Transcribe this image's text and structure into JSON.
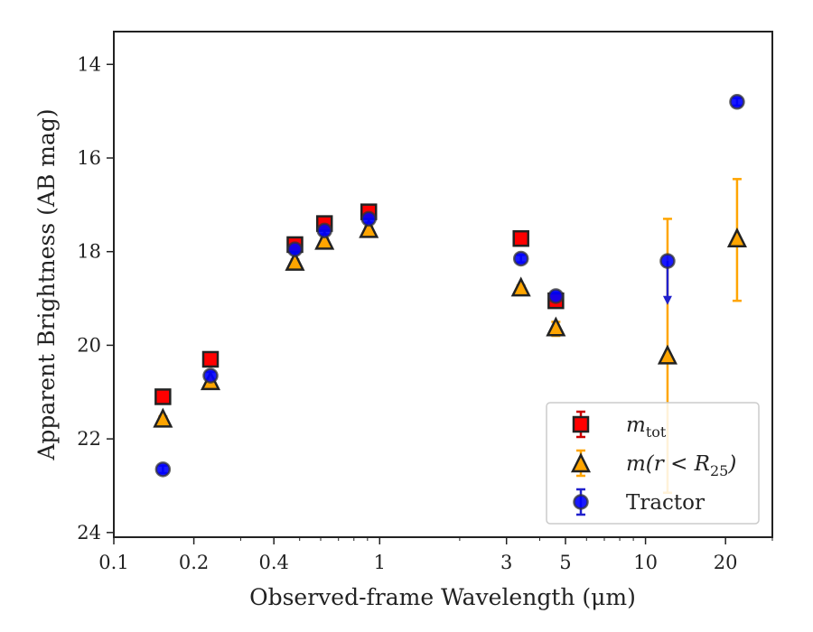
{
  "chart_data": {
    "type": "scatter",
    "xlabel": "Observed-frame Wavelength (μm)",
    "ylabel": "Apparent Brightness (AB mag)",
    "x_scale": "log",
    "xlim": [
      0.1,
      30
    ],
    "ylim": [
      24.1,
      13.3
    ],
    "y_inverted": true,
    "x_ticks": [
      {
        "value": 0.1,
        "label": "0.1"
      },
      {
        "value": 0.2,
        "label": "0.2"
      },
      {
        "value": 0.4,
        "label": "0.4"
      },
      {
        "value": 1,
        "label": "1"
      },
      {
        "value": 3,
        "label": "3"
      },
      {
        "value": 5,
        "label": "5"
      },
      {
        "value": 10,
        "label": "10"
      },
      {
        "value": 20,
        "label": "20"
      }
    ],
    "y_ticks": [
      {
        "value": 14,
        "label": "14"
      },
      {
        "value": 16,
        "label": "16"
      },
      {
        "value": 18,
        "label": "18"
      },
      {
        "value": 20,
        "label": "20"
      },
      {
        "value": 22,
        "label": "22"
      },
      {
        "value": 24,
        "label": "24"
      }
    ],
    "grid": false,
    "legend_position": "lower-right",
    "series": [
      {
        "name": "m_tot",
        "name_main": "m",
        "name_sub": "tot",
        "marker": "square",
        "color": "#ff0000",
        "error_color": "#cc0000",
        "points": [
          {
            "x": 0.153,
            "y": 21.1,
            "err": 0.08
          },
          {
            "x": 0.231,
            "y": 20.3,
            "err": 0.08
          },
          {
            "x": 0.48,
            "y": 17.85,
            "err": 0.08
          },
          {
            "x": 0.62,
            "y": 17.4,
            "err": 0.08
          },
          {
            "x": 0.91,
            "y": 17.15,
            "err": 0.08
          },
          {
            "x": 3.4,
            "y": 17.72,
            "err": 0.08
          },
          {
            "x": 4.6,
            "y": 19.05,
            "err": 0.1
          }
        ]
      },
      {
        "name": "m(r < R25)",
        "name_main": "m(r < R",
        "name_sub": "25",
        "name_tail": ")",
        "marker": "triangle",
        "color": "#ffa500",
        "error_color": "#ffa500",
        "points": [
          {
            "x": 0.153,
            "y": 21.6,
            "err": 0.08
          },
          {
            "x": 0.231,
            "y": 20.8,
            "err": 0.08
          },
          {
            "x": 0.48,
            "y": 18.25,
            "err": 0.08
          },
          {
            "x": 0.62,
            "y": 17.8,
            "err": 0.08
          },
          {
            "x": 0.91,
            "y": 17.55,
            "err": 0.08
          },
          {
            "x": 3.4,
            "y": 18.8,
            "err": 0.08
          },
          {
            "x": 4.6,
            "y": 19.65,
            "err": 0.15
          },
          {
            "x": 12.1,
            "y": 20.25,
            "err_low": 2.9,
            "err_high": 2.95
          },
          {
            "x": 22.1,
            "y": 17.75,
            "err_low": 1.3,
            "err_high": 1.3
          }
        ]
      },
      {
        "name": "Tractor",
        "marker": "circle",
        "color": "#0000ff",
        "error_color": "#2020cc",
        "points": [
          {
            "x": 0.153,
            "y": 22.65,
            "err": 0.08
          },
          {
            "x": 0.231,
            "y": 20.65,
            "err": 0.08
          },
          {
            "x": 0.48,
            "y": 17.95,
            "err": 0.08
          },
          {
            "x": 0.62,
            "y": 17.55,
            "err": 0.08
          },
          {
            "x": 0.91,
            "y": 17.3,
            "err": 0.08
          },
          {
            "x": 3.4,
            "y": 18.15,
            "err": 0.08
          },
          {
            "x": 4.6,
            "y": 18.95,
            "err": 0.08
          },
          {
            "x": 12.1,
            "y": 18.2,
            "upper_limit": true,
            "arrow_to": 19.1
          },
          {
            "x": 22.1,
            "y": 14.8,
            "err": 0.08
          }
        ]
      }
    ]
  }
}
